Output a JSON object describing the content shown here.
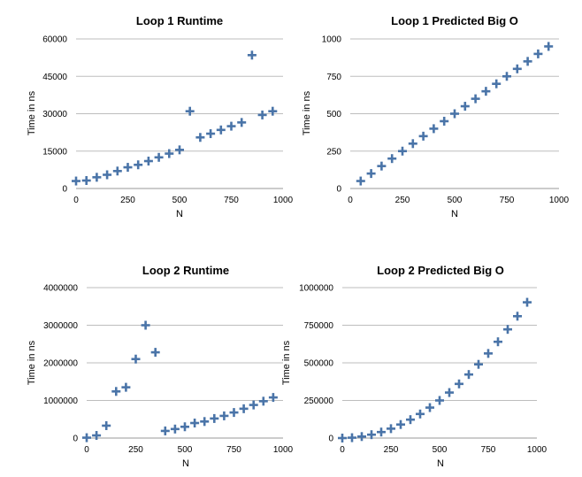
{
  "chart_data": [
    {
      "type": "scatter",
      "title": "Loop 1 Runtime",
      "xlabel": "N",
      "ylabel": "Time in ns",
      "xlim": [
        0,
        1000
      ],
      "ylim": [
        0,
        60000
      ],
      "xticks": [
        0,
        250,
        500,
        750,
        1000
      ],
      "yticks": [
        0,
        15000,
        30000,
        45000,
        60000
      ],
      "grid": true,
      "x": [
        0,
        50,
        100,
        150,
        200,
        250,
        300,
        350,
        400,
        450,
        500,
        550,
        600,
        650,
        700,
        750,
        800,
        850,
        900,
        950
      ],
      "y": [
        3000,
        3200,
        4500,
        5500,
        7000,
        8500,
        9500,
        11000,
        12500,
        14000,
        15500,
        31000,
        20500,
        22000,
        23500,
        25000,
        26500,
        53500,
        29500,
        31000
      ]
    },
    {
      "type": "scatter",
      "title": "Loop 1 Predicted Big O",
      "xlabel": "N",
      "ylabel": "Time in ns",
      "xlim": [
        0,
        1000
      ],
      "ylim": [
        0,
        1000
      ],
      "xticks": [
        0,
        250,
        500,
        750,
        1000
      ],
      "yticks": [
        0,
        250,
        500,
        750,
        1000
      ],
      "grid": true,
      "x": [
        50,
        100,
        150,
        200,
        250,
        300,
        350,
        400,
        450,
        500,
        550,
        600,
        650,
        700,
        750,
        800,
        850,
        900,
        950
      ],
      "y": [
        50,
        100,
        150,
        200,
        250,
        300,
        350,
        400,
        450,
        500,
        550,
        600,
        650,
        700,
        750,
        800,
        850,
        900,
        950
      ]
    },
    {
      "type": "scatter",
      "title": "Loop 2 Runtime",
      "xlabel": "N",
      "ylabel": "Time in ns",
      "xlim": [
        0,
        1000
      ],
      "ylim": [
        0,
        4000000
      ],
      "xticks": [
        0,
        250,
        500,
        750,
        1000
      ],
      "yticks": [
        0,
        1000000,
        2000000,
        3000000,
        4000000
      ],
      "grid": true,
      "x": [
        0,
        50,
        100,
        150,
        200,
        250,
        300,
        350,
        400,
        450,
        500,
        550,
        600,
        650,
        700,
        750,
        800,
        850,
        900,
        950
      ],
      "y": [
        10000,
        70000,
        330000,
        1240000,
        1350000,
        2100000,
        3000000,
        2280000,
        190000,
        240000,
        300000,
        400000,
        440000,
        520000,
        590000,
        680000,
        780000,
        880000,
        980000,
        1080000
      ]
    },
    {
      "type": "scatter",
      "title": "Loop 2 Predicted Big O",
      "xlabel": "N",
      "ylabel": "Time in ns",
      "xlim": [
        0,
        1000
      ],
      "ylim": [
        0,
        1000000
      ],
      "xticks": [
        0,
        250,
        500,
        750,
        1000
      ],
      "yticks": [
        0,
        250000,
        500000,
        750000,
        1000000
      ],
      "grid": true,
      "x": [
        0,
        50,
        100,
        150,
        200,
        250,
        300,
        350,
        400,
        450,
        500,
        550,
        600,
        650,
        700,
        750,
        800,
        850,
        900,
        950
      ],
      "y": [
        0,
        2500,
        10000,
        22500,
        40000,
        62500,
        90000,
        122500,
        160000,
        202500,
        250000,
        302500,
        360000,
        422500,
        490000,
        562500,
        640000,
        722500,
        810000,
        902500
      ]
    }
  ]
}
